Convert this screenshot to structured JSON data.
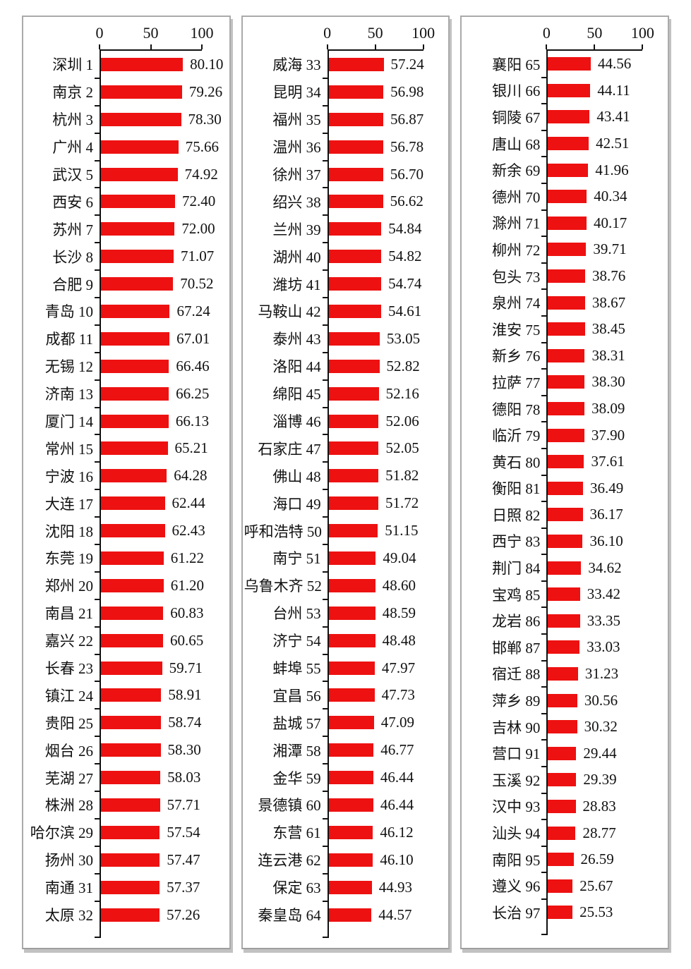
{
  "chart_data": {
    "type": "bar",
    "orientation": "horizontal",
    "title": "",
    "xlabel": "",
    "ylabel": "",
    "xlim": [
      0,
      100
    ],
    "axis_ticks": [
      "0",
      "50",
      "100"
    ],
    "bar_color": "#ee1111",
    "grid": false,
    "legend": false,
    "panels": [
      {
        "rows": [
          {
            "city": "深圳",
            "rank": "1",
            "score": "80.10"
          },
          {
            "city": "南京",
            "rank": "2",
            "score": "79.26"
          },
          {
            "city": "杭州",
            "rank": "3",
            "score": "78.30"
          },
          {
            "city": "广州",
            "rank": "4",
            "score": "75.66"
          },
          {
            "city": "武汉",
            "rank": "5",
            "score": "74.92"
          },
          {
            "city": "西安",
            "rank": "6",
            "score": "72.40"
          },
          {
            "city": "苏州",
            "rank": "7",
            "score": "72.00"
          },
          {
            "city": "长沙",
            "rank": "8",
            "score": "71.07"
          },
          {
            "city": "合肥",
            "rank": "9",
            "score": "70.52"
          },
          {
            "city": "青岛",
            "rank": "10",
            "score": "67.24"
          },
          {
            "city": "成都",
            "rank": "11",
            "score": "67.01"
          },
          {
            "city": "无锡",
            "rank": "12",
            "score": "66.46"
          },
          {
            "city": "济南",
            "rank": "13",
            "score": "66.25"
          },
          {
            "city": "厦门",
            "rank": "14",
            "score": "66.13"
          },
          {
            "city": "常州",
            "rank": "15",
            "score": "65.21"
          },
          {
            "city": "宁波",
            "rank": "16",
            "score": "64.28"
          },
          {
            "city": "大连",
            "rank": "17",
            "score": "62.44"
          },
          {
            "city": "沈阳",
            "rank": "18",
            "score": "62.43"
          },
          {
            "city": "东莞",
            "rank": "19",
            "score": "61.22"
          },
          {
            "city": "郑州",
            "rank": "20",
            "score": "61.20"
          },
          {
            "city": "南昌",
            "rank": "21",
            "score": "60.83"
          },
          {
            "city": "嘉兴",
            "rank": "22",
            "score": "60.65"
          },
          {
            "city": "长春",
            "rank": "23",
            "score": "59.71"
          },
          {
            "city": "镇江",
            "rank": "24",
            "score": "58.91"
          },
          {
            "city": "贵阳",
            "rank": "25",
            "score": "58.74"
          },
          {
            "city": "烟台",
            "rank": "26",
            "score": "58.30"
          },
          {
            "city": "芜湖",
            "rank": "27",
            "score": "58.03"
          },
          {
            "city": "株洲",
            "rank": "28",
            "score": "57.71"
          },
          {
            "city": "哈尔滨",
            "rank": "29",
            "score": "57.54"
          },
          {
            "city": "扬州",
            "rank": "30",
            "score": "57.47"
          },
          {
            "city": "南通",
            "rank": "31",
            "score": "57.37"
          },
          {
            "city": "太原",
            "rank": "32",
            "score": "57.26"
          }
        ]
      },
      {
        "rows": [
          {
            "city": "威海",
            "rank": "33",
            "score": "57.24"
          },
          {
            "city": "昆明",
            "rank": "34",
            "score": "56.98"
          },
          {
            "city": "福州",
            "rank": "35",
            "score": "56.87"
          },
          {
            "city": "温州",
            "rank": "36",
            "score": "56.78"
          },
          {
            "city": "徐州",
            "rank": "37",
            "score": "56.70"
          },
          {
            "city": "绍兴",
            "rank": "38",
            "score": "56.62"
          },
          {
            "city": "兰州",
            "rank": "39",
            "score": "54.84"
          },
          {
            "city": "湖州",
            "rank": "40",
            "score": "54.82"
          },
          {
            "city": "潍坊",
            "rank": "41",
            "score": "54.74"
          },
          {
            "city": "马鞍山",
            "rank": "42",
            "score": "54.61"
          },
          {
            "city": "泰州",
            "rank": "43",
            "score": "53.05"
          },
          {
            "city": "洛阳",
            "rank": "44",
            "score": "52.82"
          },
          {
            "city": "绵阳",
            "rank": "45",
            "score": "52.16"
          },
          {
            "city": "淄博",
            "rank": "46",
            "score": "52.06"
          },
          {
            "city": "石家庄",
            "rank": "47",
            "score": "52.05"
          },
          {
            "city": "佛山",
            "rank": "48",
            "score": "51.82"
          },
          {
            "city": "海口",
            "rank": "49",
            "score": "51.72"
          },
          {
            "city": "呼和浩特",
            "rank": "50",
            "score": "51.15"
          },
          {
            "city": "南宁",
            "rank": "51",
            "score": "49.04"
          },
          {
            "city": "乌鲁木齐",
            "rank": "52",
            "score": "48.60"
          },
          {
            "city": "台州",
            "rank": "53",
            "score": "48.59"
          },
          {
            "city": "济宁",
            "rank": "54",
            "score": "48.48"
          },
          {
            "city": "蚌埠",
            "rank": "55",
            "score": "47.97"
          },
          {
            "city": "宜昌",
            "rank": "56",
            "score": "47.73"
          },
          {
            "city": "盐城",
            "rank": "57",
            "score": "47.09"
          },
          {
            "city": "湘潭",
            "rank": "58",
            "score": "46.77"
          },
          {
            "city": "金华",
            "rank": "59",
            "score": "46.44"
          },
          {
            "city": "景德镇",
            "rank": "60",
            "score": "46.44"
          },
          {
            "city": "东营",
            "rank": "61",
            "score": "46.12"
          },
          {
            "city": "连云港",
            "rank": "62",
            "score": "46.10"
          },
          {
            "city": "保定",
            "rank": "63",
            "score": "44.93"
          },
          {
            "city": "秦皇岛",
            "rank": "64",
            "score": "44.57"
          }
        ]
      },
      {
        "rows": [
          {
            "city": "襄阳",
            "rank": "65",
            "score": "44.56"
          },
          {
            "city": "银川",
            "rank": "66",
            "score": "44.11"
          },
          {
            "city": "铜陵",
            "rank": "67",
            "score": "43.41"
          },
          {
            "city": "唐山",
            "rank": "68",
            "score": "42.51"
          },
          {
            "city": "新余",
            "rank": "69",
            "score": "41.96"
          },
          {
            "city": "德州",
            "rank": "70",
            "score": "40.34"
          },
          {
            "city": "滁州",
            "rank": "71",
            "score": "40.17"
          },
          {
            "city": "柳州",
            "rank": "72",
            "score": "39.71"
          },
          {
            "city": "包头",
            "rank": "73",
            "score": "38.76"
          },
          {
            "city": "泉州",
            "rank": "74",
            "score": "38.67"
          },
          {
            "city": "淮安",
            "rank": "75",
            "score": "38.45"
          },
          {
            "city": "新乡",
            "rank": "76",
            "score": "38.31"
          },
          {
            "city": "拉萨",
            "rank": "77",
            "score": "38.30"
          },
          {
            "city": "德阳",
            "rank": "78",
            "score": "38.09"
          },
          {
            "city": "临沂",
            "rank": "79",
            "score": "37.90"
          },
          {
            "city": "黄石",
            "rank": "80",
            "score": "37.61"
          },
          {
            "city": "衡阳",
            "rank": "81",
            "score": "36.49"
          },
          {
            "city": "日照",
            "rank": "82",
            "score": "36.17"
          },
          {
            "city": "西宁",
            "rank": "83",
            "score": "36.10"
          },
          {
            "city": "荆门",
            "rank": "84",
            "score": "34.62"
          },
          {
            "city": "宝鸡",
            "rank": "85",
            "score": "33.42"
          },
          {
            "city": "龙岩",
            "rank": "86",
            "score": "33.35"
          },
          {
            "city": "邯郸",
            "rank": "87",
            "score": "33.03"
          },
          {
            "city": "宿迁",
            "rank": "88",
            "score": "31.23"
          },
          {
            "city": "萍乡",
            "rank": "89",
            "score": "30.56"
          },
          {
            "city": "吉林",
            "rank": "90",
            "score": "30.32"
          },
          {
            "city": "营口",
            "rank": "91",
            "score": "29.44"
          },
          {
            "city": "玉溪",
            "rank": "92",
            "score": "29.39"
          },
          {
            "city": "汉中",
            "rank": "93",
            "score": "28.83"
          },
          {
            "city": "汕头",
            "rank": "94",
            "score": "28.77"
          },
          {
            "city": "南阳",
            "rank": "95",
            "score": "26.59"
          },
          {
            "city": "遵义",
            "rank": "96",
            "score": "25.67"
          },
          {
            "city": "长治",
            "rank": "97",
            "score": "25.53"
          }
        ]
      }
    ]
  }
}
